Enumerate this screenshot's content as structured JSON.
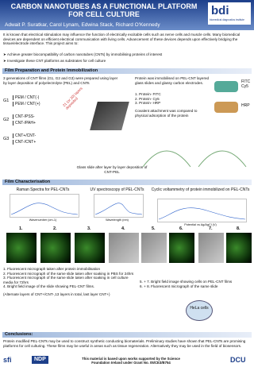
{
  "header": {
    "title": "CARBON NANOTUBES AS A FUNCTIONAL PLATFORM FOR CELL CULTURE",
    "authors": "Adwait P. Suratkar, Carol Lynam, Edwina Stack, Richard O'Kennedy",
    "logo": "bdi",
    "logo_sub": "biomedical diagnostics institute"
  },
  "intro": {
    "text": "It is known that electrical stimulation may influence the function of electrically excitable cells such as nerve cells and muscle cells. Many biomedical devices are dependent on efficient electrical communication with living cells. Advancement of these devices depends upon effectively bridging the tissue/electrode interface. This project aims to:",
    "bullets": [
      "Achieve greater biocompatibility of carbon nanotubes (CNTs) by immobilising proteins of interest",
      "Investigate these CNT platforms as substrates for cell culture"
    ]
  },
  "prep": {
    "heading": "Film Preparation and Protein Immobilization",
    "text": "3 generations of CNT films (G1, G2 and G3) were prepared using layer by layer deposition of polyelectrolyte (PEL) and CNTs",
    "groups": [
      {
        "label": "G1",
        "items": [
          "PEM / CNT(-)",
          "PEM / CNT(+)"
        ]
      },
      {
        "label": "G2",
        "items": [
          "CNT-/PSS-",
          "CNT-/PAH+"
        ]
      },
      {
        "label": "G3",
        "items": [
          "CNT+/CNT-",
          "CNT-/CNT+"
        ]
      }
    ],
    "layers": "21 (or 20) layers deposited",
    "slide_caption": "Glass slide after layer by layer deposition of CNT-PEL",
    "protein_text": "Protein was immobilised on PEL-CNT layered glass slides and glassy carbon electrodes.",
    "proteins": [
      "1. Protein- FITC",
      "2. Protein- Cy5",
      "3. Protein- HRP"
    ],
    "covalent_text": "Covalent attachment was compared to physical adsorption of the protein",
    "tags": [
      "FITC",
      "Cy5",
      "HRP"
    ]
  },
  "char": {
    "heading": "Film Characterisation",
    "charts": [
      {
        "title": "Raman Spectra for PEL-CNTs",
        "xlabel": "Wavenumber (cm-1)"
      },
      {
        "title": "UV spectroscopy of PEL-CNTs",
        "xlabel": "Wavelength (nm)"
      },
      {
        "title": "Cyclic voltammetry of protein immobilized on PEL-CNTs",
        "xlabel": "Potential vs Ag/AgCl (V)"
      }
    ],
    "image_numbers": [
      "1.",
      "2.",
      "3.",
      "4.",
      "5.",
      "6.",
      "7.",
      "8."
    ],
    "captions_left": [
      "1. Fluorescent micrograph taken after protein immobilisation",
      "2. Fluorescent micrograph of the same slide taken after soaking in PBS for 24hrs",
      "3. Fluorescent micrograph of the same slide taken after soaking in cell culture media for 72hrs",
      "4. Bright field image of the slide showing PEL-CNT films.",
      "(Alternate layers of CNT+/CNT-,13 layers in total, last layer CNT+)"
    ],
    "captions_right": [
      "5. + 7. Bright field image showing cells on PEL-CNT films",
      "6. + 8. Fluorescent micrograph of the same slide"
    ],
    "cells": "HeLa cells"
  },
  "conclusions": {
    "heading": "Conclusions:",
    "text": "Protein modified PEL-CNTs may be used to construct synthetic conducting biomaterials. Preliminary studies have shown that PEL-CNTs are promising platforms for cell culturing. These films may be useful in areas such as tissue regeneration. Alternatively they may be used in the field of biosensors."
  },
  "footer": {
    "left": "sfi",
    "mid": "NDP",
    "text": "This material is based upon works supported by the Science Foundation Ireland under Grant No. 05/CE3/B754",
    "right": "DCU"
  }
}
